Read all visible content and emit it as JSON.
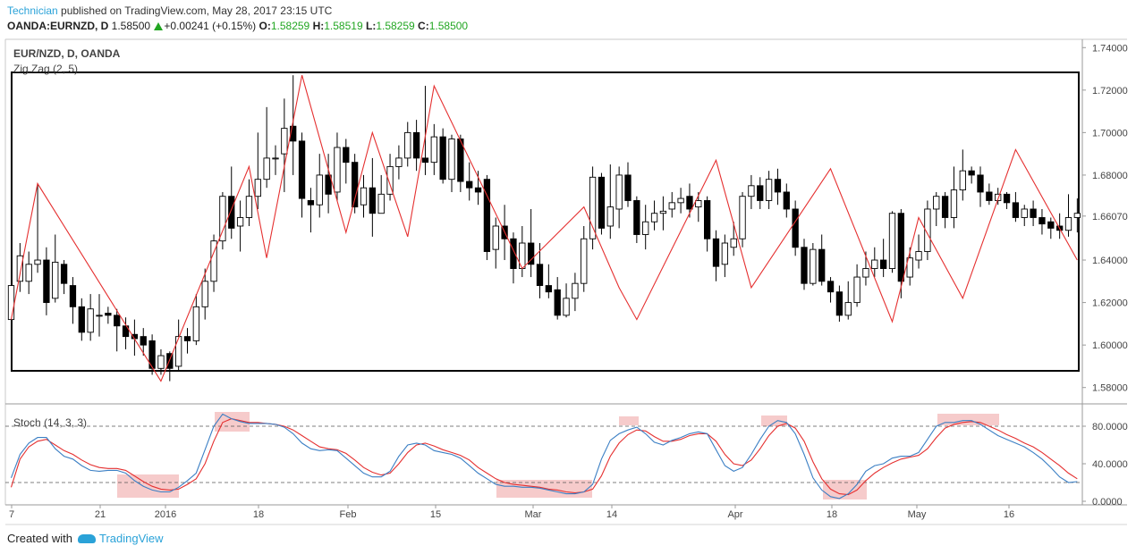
{
  "header": {
    "author": "Technician",
    "published_text": " published on TradingView.com, May 28, 2017 23:15 UTC",
    "symbol": "OANDA:EURNZD, D",
    "last_price": "1.58500",
    "change": "+0.00241 (+0.15%)",
    "o_label": "O:",
    "o_value": "1.58259",
    "h_label": "H:",
    "h_value": "1.58519",
    "l_label": "L:",
    "l_value": "1.58259",
    "c_label": "C:",
    "c_value": "1.58500"
  },
  "main_pane": {
    "title": "EUR/NZD, D, OANDA",
    "indicator": "Zig Zag (2, 5)"
  },
  "stoch_pane": {
    "title": "Stoch (14, 3, 3)"
  },
  "footer": {
    "created_with": "Created with",
    "brand": "TradingView"
  },
  "colors": {
    "up": "#ffffff",
    "down": "#000000",
    "zigzag": "#e53030",
    "stoch_k": "#3b7fc4",
    "stoch_d": "#e53030",
    "highlight": "#f4c2c2",
    "accent": "#2aa2d8"
  },
  "chart_data": [
    {
      "type": "candlestick",
      "title": "EUR/NZD, D, OANDA",
      "ylim": [
        1.5723,
        1.7439
      ],
      "y_ticks": [
        "1.74000",
        "1.72000",
        "1.70000",
        "1.68000",
        "1.66070",
        "1.64000",
        "1.62000",
        "1.60000",
        "1.58000"
      ],
      "x_ticks": [
        "7",
        "21",
        "2016",
        "18",
        "Feb",
        "15",
        "Mar",
        "14",
        "Apr",
        "18",
        "May",
        "16"
      ],
      "candles": [
        [
          1.612,
          1.628,
          1.61,
          1.63
        ],
        [
          1.63,
          1.642,
          1.625,
          1.648
        ],
        [
          1.63,
          1.638,
          1.624,
          1.644
        ],
        [
          1.638,
          1.64,
          1.634,
          1.676
        ],
        [
          1.64,
          1.62,
          1.614,
          1.646
        ],
        [
          1.622,
          1.639,
          1.62,
          1.652
        ],
        [
          1.638,
          1.629,
          1.624,
          1.64
        ],
        [
          1.628,
          1.618,
          1.61,
          1.632
        ],
        [
          1.618,
          1.606,
          1.602,
          1.622
        ],
        [
          1.606,
          1.617,
          1.602,
          1.624
        ],
        [
          1.614,
          1.614,
          1.604,
          1.624
        ],
        [
          1.615,
          1.614,
          1.61,
          1.618
        ],
        [
          1.614,
          1.609,
          1.597,
          1.617
        ],
        [
          1.609,
          1.604,
          1.598,
          1.613
        ],
        [
          1.605,
          1.603,
          1.595,
          1.612
        ],
        [
          1.604,
          1.6,
          1.595,
          1.608
        ],
        [
          1.602,
          1.589,
          1.586,
          1.605
        ],
        [
          1.589,
          1.595,
          1.586,
          1.598
        ],
        [
          1.596,
          1.589,
          1.583,
          1.597
        ],
        [
          1.59,
          1.604,
          1.588,
          1.612
        ],
        [
          1.604,
          1.602,
          1.596,
          1.608
        ],
        [
          1.602,
          1.618,
          1.6,
          1.624
        ],
        [
          1.618,
          1.63,
          1.612,
          1.636
        ],
        [
          1.63,
          1.649,
          1.625,
          1.652
        ],
        [
          1.649,
          1.67,
          1.645,
          1.672
        ],
        [
          1.67,
          1.655,
          1.65,
          1.684
        ],
        [
          1.656,
          1.66,
          1.644,
          1.668
        ],
        [
          1.66,
          1.67,
          1.656,
          1.678
        ],
        [
          1.67,
          1.678,
          1.664,
          1.7
        ],
        [
          1.678,
          1.688,
          1.674,
          1.712
        ],
        [
          1.688,
          1.688,
          1.68,
          1.694
        ],
        [
          1.69,
          1.702,
          1.672,
          1.716
        ],
        [
          1.703,
          1.696,
          1.68,
          1.727
        ],
        [
          1.696,
          1.669,
          1.66,
          1.7
        ],
        [
          1.668,
          1.666,
          1.653,
          1.674
        ],
        [
          1.666,
          1.68,
          1.66,
          1.69
        ],
        [
          1.68,
          1.671,
          1.662,
          1.69
        ],
        [
          1.672,
          1.693,
          1.668,
          1.7
        ],
        [
          1.693,
          1.686,
          1.676,
          1.697
        ],
        [
          1.686,
          1.665,
          1.662,
          1.69
        ],
        [
          1.666,
          1.674,
          1.66,
          1.68
        ],
        [
          1.674,
          1.662,
          1.651,
          1.688
        ],
        [
          1.662,
          1.671,
          1.662,
          1.68
        ],
        [
          1.671,
          1.684,
          1.668,
          1.69
        ],
        [
          1.684,
          1.688,
          1.678,
          1.694
        ],
        [
          1.688,
          1.7,
          1.684,
          1.705
        ],
        [
          1.7,
          1.688,
          1.682,
          1.706
        ],
        [
          1.688,
          1.686,
          1.68,
          1.722
        ],
        [
          1.686,
          1.698,
          1.68,
          1.704
        ],
        [
          1.698,
          1.678,
          1.676,
          1.702
        ],
        [
          1.678,
          1.697,
          1.672,
          1.699
        ],
        [
          1.697,
          1.677,
          1.672,
          1.699
        ],
        [
          1.677,
          1.674,
          1.668,
          1.686
        ],
        [
          1.674,
          1.672,
          1.666,
          1.682
        ],
        [
          1.678,
          1.644,
          1.64,
          1.68
        ],
        [
          1.645,
          1.656,
          1.636,
          1.66
        ],
        [
          1.656,
          1.65,
          1.64,
          1.666
        ],
        [
          1.65,
          1.636,
          1.629,
          1.653
        ],
        [
          1.636,
          1.648,
          1.632,
          1.656
        ],
        [
          1.648,
          1.638,
          1.632,
          1.664
        ],
        [
          1.638,
          1.628,
          1.622,
          1.648
        ],
        [
          1.628,
          1.625,
          1.622,
          1.638
        ],
        [
          1.626,
          1.614,
          1.612,
          1.632
        ],
        [
          1.614,
          1.622,
          1.613,
          1.629
        ],
        [
          1.622,
          1.629,
          1.616,
          1.634
        ],
        [
          1.629,
          1.65,
          1.625,
          1.656
        ],
        [
          1.65,
          1.679,
          1.645,
          1.684
        ],
        [
          1.679,
          1.655,
          1.652,
          1.681
        ],
        [
          1.656,
          1.665,
          1.65,
          1.685
        ],
        [
          1.664,
          1.68,
          1.655,
          1.684
        ],
        [
          1.68,
          1.668,
          1.665,
          1.686
        ],
        [
          1.668,
          1.652,
          1.648,
          1.67
        ],
        [
          1.652,
          1.658,
          1.645,
          1.666
        ],
        [
          1.658,
          1.662,
          1.654,
          1.668
        ],
        [
          1.662,
          1.663,
          1.654,
          1.67
        ],
        [
          1.664,
          1.667,
          1.66,
          1.672
        ],
        [
          1.667,
          1.669,
          1.662,
          1.674
        ],
        [
          1.67,
          1.664,
          1.66,
          1.676
        ],
        [
          1.665,
          1.668,
          1.658,
          1.672
        ],
        [
          1.668,
          1.65,
          1.644,
          1.67
        ],
        [
          1.65,
          1.637,
          1.63,
          1.654
        ],
        [
          1.638,
          1.648,
          1.632,
          1.652
        ],
        [
          1.646,
          1.65,
          1.642,
          1.658
        ],
        [
          1.65,
          1.67,
          1.646,
          1.672
        ],
        [
          1.67,
          1.675,
          1.664,
          1.68
        ],
        [
          1.675,
          1.668,
          1.664,
          1.679
        ],
        [
          1.668,
          1.678,
          1.664,
          1.682
        ],
        [
          1.678,
          1.672,
          1.666,
          1.683
        ],
        [
          1.672,
          1.664,
          1.66,
          1.676
        ],
        [
          1.664,
          1.646,
          1.642,
          1.668
        ],
        [
          1.646,
          1.629,
          1.626,
          1.65
        ],
        [
          1.629,
          1.645,
          1.628,
          1.648
        ],
        [
          1.645,
          1.63,
          1.628,
          1.652
        ],
        [
          1.63,
          1.625,
          1.62,
          1.632
        ],
        [
          1.625,
          1.614,
          1.611,
          1.628
        ],
        [
          1.614,
          1.62,
          1.612,
          1.63
        ],
        [
          1.62,
          1.632,
          1.618,
          1.638
        ],
        [
          1.632,
          1.636,
          1.628,
          1.644
        ],
        [
          1.636,
          1.64,
          1.632,
          1.646
        ],
        [
          1.64,
          1.636,
          1.632,
          1.65
        ],
        [
          1.636,
          1.662,
          1.634,
          1.663
        ],
        [
          1.662,
          1.63,
          1.622,
          1.664
        ],
        [
          1.632,
          1.641,
          1.628,
          1.646
        ],
        [
          1.64,
          1.644,
          1.636,
          1.652
        ],
        [
          1.644,
          1.664,
          1.64,
          1.668
        ],
        [
          1.664,
          1.67,
          1.656,
          1.672
        ],
        [
          1.67,
          1.66,
          1.655,
          1.672
        ],
        [
          1.66,
          1.673,
          1.655,
          1.684
        ],
        [
          1.673,
          1.682,
          1.668,
          1.692
        ],
        [
          1.682,
          1.68,
          1.676,
          1.684
        ],
        [
          1.68,
          1.672,
          1.665,
          1.684
        ],
        [
          1.672,
          1.668,
          1.666,
          1.676
        ],
        [
          1.668,
          1.671,
          1.666,
          1.674
        ],
        [
          1.671,
          1.667,
          1.664,
          1.672
        ],
        [
          1.667,
          1.66,
          1.658,
          1.672
        ],
        [
          1.66,
          1.664,
          1.656,
          1.666
        ],
        [
          1.664,
          1.66,
          1.656,
          1.668
        ],
        [
          1.66,
          1.657,
          1.652,
          1.664
        ],
        [
          1.658,
          1.655,
          1.65,
          1.66
        ],
        [
          1.656,
          1.654,
          1.65,
          1.662
        ],
        [
          1.654,
          1.66,
          1.651,
          1.671
        ],
        [
          1.66,
          1.662,
          1.653,
          1.669
        ]
      ],
      "zigzag": [
        [
          0,
          1.612
        ],
        [
          3,
          1.676
        ],
        [
          17,
          1.583
        ],
        [
          27,
          1.684
        ],
        [
          29,
          1.641
        ],
        [
          33,
          1.727
        ],
        [
          38,
          1.653
        ],
        [
          41,
          1.7
        ],
        [
          45,
          1.651
        ],
        [
          48,
          1.722
        ],
        [
          58,
          1.636
        ],
        [
          65,
          1.665
        ],
        [
          69,
          1.627
        ],
        [
          71,
          1.612
        ],
        [
          80,
          1.687
        ],
        [
          84,
          1.627
        ],
        [
          93,
          1.683
        ],
        [
          100,
          1.611
        ],
        [
          103,
          1.66
        ],
        [
          108,
          1.622
        ],
        [
          114,
          1.692
        ],
        [
          121,
          1.64
        ]
      ]
    },
    {
      "type": "line",
      "title": "Stoch (14, 3, 3)",
      "ylim": [
        0,
        100
      ],
      "y_ticks": [
        "80.0000",
        "40.0000",
        "0.0000"
      ],
      "levels": [
        80,
        20
      ],
      "series": [
        {
          "values": [
            25,
            50,
            62,
            68,
            68,
            56,
            48,
            45,
            38,
            33,
            32,
            33,
            33,
            30,
            22,
            16,
            12,
            10,
            10,
            15,
            22,
            30,
            55,
            80,
            93,
            88,
            85,
            83,
            83,
            83,
            82,
            79,
            72,
            62,
            56,
            54,
            55,
            54,
            46,
            38,
            30,
            26,
            26,
            32,
            48,
            60,
            62,
            60,
            54,
            52,
            50,
            46,
            38,
            30,
            24,
            18,
            16,
            16,
            15,
            15,
            14,
            12,
            10,
            8,
            8,
            10,
            18,
            45,
            65,
            72,
            76,
            79,
            72,
            63,
            60,
            65,
            68,
            72,
            74,
            72,
            55,
            38,
            32,
            36,
            50,
            66,
            80,
            86,
            84,
            72,
            50,
            25,
            12,
            5,
            3,
            8,
            18,
            32,
            38,
            40,
            46,
            48,
            48,
            52,
            66,
            80,
            84,
            84,
            86,
            86,
            82,
            76,
            70,
            66,
            62,
            58,
            52,
            45,
            36,
            26,
            20,
            21
          ]
        },
        {
          "values": [
            15,
            45,
            58,
            64,
            66,
            60,
            54,
            50,
            44,
            39,
            36,
            35,
            35,
            33,
            27,
            21,
            16,
            13,
            12,
            13,
            18,
            24,
            40,
            64,
            84,
            88,
            86,
            84,
            84,
            83,
            82,
            80,
            76,
            70,
            64,
            58,
            56,
            55,
            51,
            44,
            36,
            31,
            28,
            30,
            40,
            52,
            60,
            62,
            59,
            55,
            52,
            49,
            44,
            36,
            30,
            24,
            20,
            18,
            17,
            16,
            15,
            13,
            12,
            10,
            9,
            10,
            13,
            27,
            48,
            62,
            71,
            76,
            75,
            69,
            64,
            64,
            66,
            70,
            72,
            72,
            64,
            50,
            40,
            38,
            44,
            56,
            70,
            80,
            83,
            78,
            64,
            42,
            24,
            13,
            8,
            7,
            12,
            22,
            30,
            36,
            41,
            45,
            47,
            49,
            56,
            68,
            78,
            82,
            84,
            85,
            84,
            80,
            76,
            71,
            67,
            62,
            58,
            52,
            45,
            38,
            30,
            24
          ]
        }
      ],
      "highlights": [
        [
          15,
          23
        ],
        [
          28,
          33
        ],
        [
          68,
          74
        ],
        [
          82,
          86
        ],
        [
          106,
          111
        ],
        [
          87,
          91
        ],
        [
          95,
          101
        ],
        [
          62,
          71
        ]
      ]
    }
  ]
}
